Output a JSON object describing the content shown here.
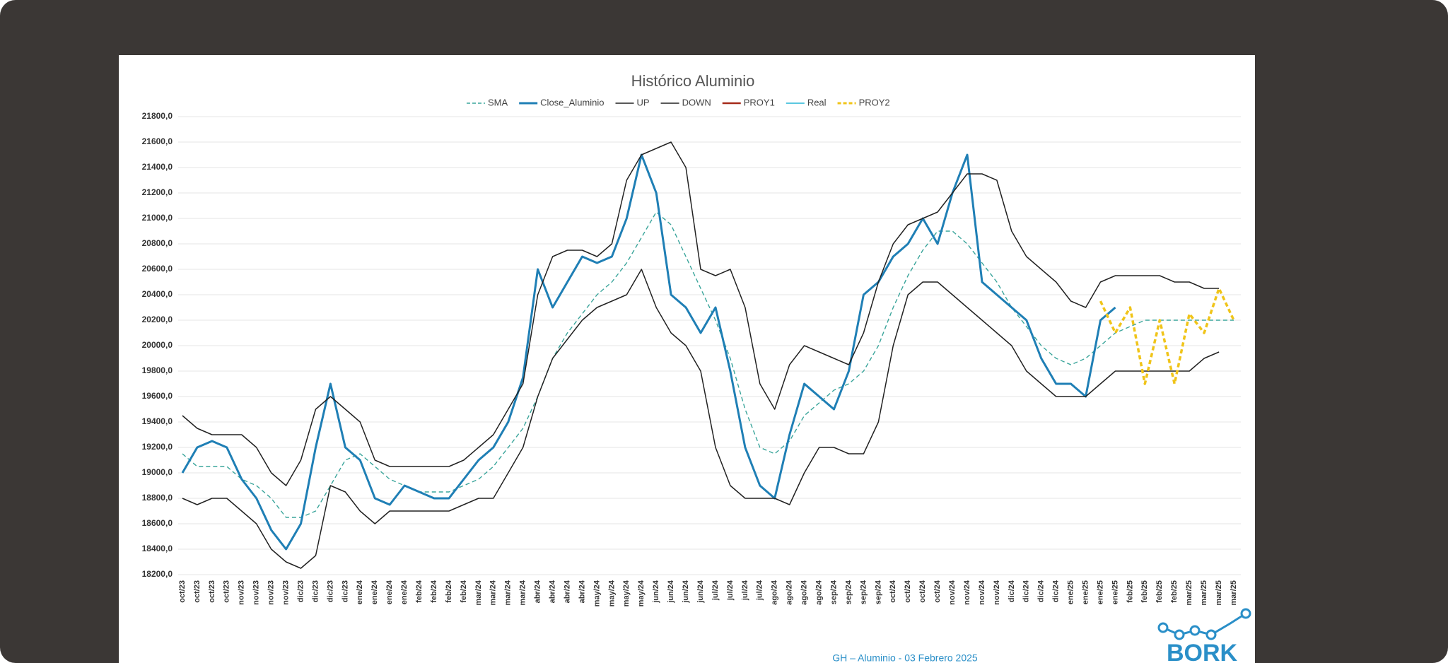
{
  "chart_data": {
    "type": "line",
    "title": "Histórico Aluminio",
    "footer": "GH – Aluminio - 03 Febrero 2025",
    "logo": "BORK",
    "categories": [
      "oct/23",
      "oct/23",
      "oct/23",
      "oct/23",
      "nov/23",
      "nov/23",
      "nov/23",
      "nov/23",
      "dic/23",
      "dic/23",
      "dic/23",
      "dic/23",
      "ene/24",
      "ene/24",
      "ene/24",
      "ene/24",
      "feb/24",
      "feb/24",
      "feb/24",
      "feb/24",
      "mar/24",
      "mar/24",
      "mar/24",
      "mar/24",
      "abr/24",
      "abr/24",
      "abr/24",
      "abr/24",
      "may/24",
      "may/24",
      "may/24",
      "may/24",
      "jun/24",
      "jun/24",
      "jun/24",
      "jun/24",
      "jul/24",
      "jul/24",
      "jul/24",
      "jul/24",
      "ago/24",
      "ago/24",
      "ago/24",
      "ago/24",
      "sep/24",
      "sep/24",
      "sep/24",
      "sep/24",
      "oct/24",
      "oct/24",
      "oct/24",
      "oct/24",
      "nov/24",
      "nov/24",
      "nov/24",
      "nov/24",
      "dic/24",
      "dic/24",
      "dic/24",
      "dic/24",
      "ene/25",
      "ene/25",
      "ene/25",
      "ene/25",
      "feb/25",
      "feb/25",
      "feb/25",
      "feb/25",
      "mar/25",
      "mar/25",
      "mar/25",
      "mar/25"
    ],
    "ylim": [
      18200,
      21800
    ],
    "yticks": [
      {
        "value": 18200,
        "label": "18200,0"
      },
      {
        "value": 18400,
        "label": "18400,0"
      },
      {
        "value": 18600,
        "label": "18600,0"
      },
      {
        "value": 18800,
        "label": "18800,0"
      },
      {
        "value": 19000,
        "label": "19000,0"
      },
      {
        "value": 19200,
        "label": "19200,0"
      },
      {
        "value": 19400,
        "label": "19400,0"
      },
      {
        "value": 19600,
        "label": "19600,0"
      },
      {
        "value": 19800,
        "label": "19800,0"
      },
      {
        "value": 20000,
        "label": "20000,0"
      },
      {
        "value": 20200,
        "label": "20200,0"
      },
      {
        "value": 20400,
        "label": "20400,0"
      },
      {
        "value": 20600,
        "label": "20600,0"
      },
      {
        "value": 20800,
        "label": "20800,0"
      },
      {
        "value": 21000,
        "label": "21000,0"
      },
      {
        "value": 21200,
        "label": "21200,0"
      },
      {
        "value": 21400,
        "label": "21400,0"
      },
      {
        "value": 21600,
        "label": "21600,0"
      },
      {
        "value": 21800,
        "label": "21800,0"
      }
    ],
    "grid": true,
    "legend": "top",
    "series": [
      {
        "name": "SMA",
        "color": "#3aa59b",
        "style": "dashed",
        "values": [
          19150,
          19050,
          19050,
          19050,
          18950,
          18900,
          18800,
          18650,
          18650,
          18700,
          18900,
          19100,
          19150,
          19050,
          18950,
          18900,
          18850,
          18850,
          18850,
          18900,
          18950,
          19050,
          19200,
          19350,
          19600,
          19900,
          20100,
          20250,
          20400,
          20500,
          20650,
          20850,
          21050,
          20950,
          20700,
          20450,
          20200,
          19900,
          19500,
          19200,
          19150,
          19250,
          19450,
          19550,
          19650,
          19700,
          19800,
          20000,
          20300,
          20550,
          20750,
          20900,
          20900,
          20800,
          20650,
          20500,
          20300,
          20150,
          20000,
          19900,
          19850,
          19900,
          20000,
          20100,
          20150,
          20200,
          20200,
          20200,
          20200,
          20200,
          20200,
          20200
        ]
      },
      {
        "name": "Close_Aluminio",
        "color": "#1f7fb5",
        "style": "solid",
        "values": [
          19000,
          19200,
          19250,
          19200,
          18950,
          18800,
          18550,
          18400,
          18600,
          19200,
          19700,
          19200,
          19100,
          18800,
          18750,
          18900,
          18850,
          18800,
          18800,
          18950,
          19100,
          19200,
          19400,
          19750,
          20600,
          20300,
          20500,
          20700,
          20650,
          20700,
          21000,
          21500,
          21200,
          20400,
          20300,
          20100,
          20300,
          19800,
          19200,
          18900,
          18800,
          19300,
          19700,
          19600,
          19500,
          19800,
          20400,
          20500,
          20700,
          20800,
          21000,
          20800,
          21200,
          21500,
          20500,
          20400,
          20300,
          20200,
          19900,
          19700,
          19700,
          19600,
          20200,
          20300,
          null,
          null,
          null,
          null,
          null,
          null,
          null,
          null
        ]
      },
      {
        "name": "UP",
        "color": "#222222",
        "style": "solid",
        "values": [
          19450,
          19350,
          19300,
          19300,
          19300,
          19200,
          19000,
          18900,
          19100,
          19500,
          19600,
          19500,
          19400,
          19100,
          19050,
          19050,
          19050,
          19050,
          19050,
          19100,
          19200,
          19300,
          19500,
          19700,
          20400,
          20700,
          20750,
          20750,
          20700,
          20800,
          21300,
          21500,
          21550,
          21600,
          21400,
          20600,
          20550,
          20600,
          20300,
          19700,
          19500,
          19850,
          20000,
          19950,
          19900,
          19850,
          20100,
          20500,
          20800,
          20950,
          21000,
          21050,
          21200,
          21350,
          21350,
          21300,
          20900,
          20700,
          20600,
          20500,
          20350,
          20300,
          20500,
          20550,
          20550,
          20550,
          20550,
          20500,
          20500,
          20450,
          20450,
          null
        ]
      },
      {
        "name": "DOWN",
        "color": "#222222",
        "style": "solid",
        "values": [
          18800,
          18750,
          18800,
          18800,
          18700,
          18600,
          18400,
          18300,
          18250,
          18350,
          18900,
          18850,
          18700,
          18600,
          18700,
          18700,
          18700,
          18700,
          18700,
          18750,
          18800,
          18800,
          19000,
          19200,
          19600,
          19900,
          20050,
          20200,
          20300,
          20350,
          20400,
          20600,
          20300,
          20100,
          20000,
          19800,
          19200,
          18900,
          18800,
          18800,
          18800,
          18750,
          19000,
          19200,
          19200,
          19150,
          19150,
          19400,
          20000,
          20400,
          20500,
          20500,
          20400,
          20300,
          20200,
          20100,
          20000,
          19800,
          19700,
          19600,
          19600,
          19600,
          19700,
          19800,
          19800,
          19800,
          19800,
          19800,
          19800,
          19900,
          19950,
          null
        ]
      },
      {
        "name": "PROY1",
        "color": "#a52a1a",
        "style": "solid",
        "values": [
          null,
          null,
          null,
          null,
          null,
          null,
          null,
          null,
          null,
          null,
          null,
          null,
          null,
          null,
          null,
          null,
          null,
          null,
          null,
          null,
          null,
          null,
          null,
          null,
          null,
          null,
          null,
          null,
          null,
          null,
          null,
          null,
          null,
          null,
          null,
          null,
          null,
          null,
          null,
          null,
          null,
          null,
          null,
          null,
          null,
          null,
          null,
          null,
          null,
          null,
          null,
          null,
          null,
          null,
          null,
          null,
          null,
          null,
          null,
          null,
          null,
          null,
          null,
          null,
          null,
          null,
          null,
          null,
          null,
          null,
          null,
          null
        ]
      },
      {
        "name": "Real",
        "color": "#5bc8e0",
        "style": "solid",
        "values": [
          null,
          null,
          null,
          null,
          null,
          null,
          null,
          null,
          null,
          null,
          null,
          null,
          null,
          null,
          null,
          null,
          null,
          null,
          null,
          null,
          null,
          null,
          null,
          null,
          null,
          null,
          null,
          null,
          null,
          null,
          null,
          null,
          null,
          null,
          null,
          null,
          null,
          null,
          null,
          null,
          null,
          null,
          null,
          null,
          null,
          null,
          null,
          null,
          null,
          null,
          null,
          null,
          null,
          null,
          null,
          null,
          null,
          null,
          null,
          null,
          null,
          null,
          null,
          null,
          null,
          null,
          null,
          null,
          null,
          null,
          null,
          null
        ]
      },
      {
        "name": "PROY2",
        "color": "#f0c419",
        "style": "dashed",
        "values": [
          null,
          null,
          null,
          null,
          null,
          null,
          null,
          null,
          null,
          null,
          null,
          null,
          null,
          null,
          null,
          null,
          null,
          null,
          null,
          null,
          null,
          null,
          null,
          null,
          null,
          null,
          null,
          null,
          null,
          null,
          null,
          null,
          null,
          null,
          null,
          null,
          null,
          null,
          null,
          null,
          null,
          null,
          null,
          null,
          null,
          null,
          null,
          null,
          null,
          null,
          null,
          null,
          null,
          null,
          null,
          null,
          null,
          null,
          null,
          null,
          null,
          null,
          20350,
          20100,
          20300,
          19700,
          20200,
          19700,
          20250,
          20100,
          20450,
          20200
        ]
      }
    ]
  }
}
